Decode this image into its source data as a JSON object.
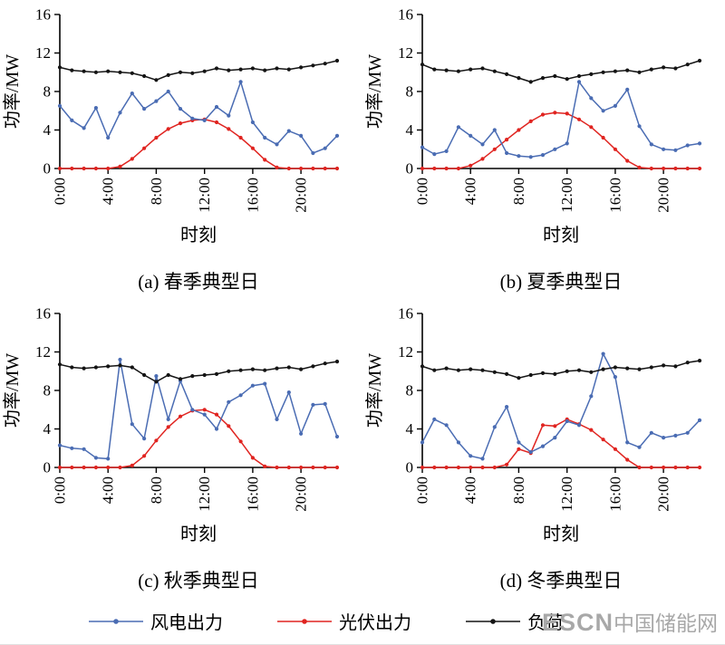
{
  "axes": {
    "ylabel": "功率/MW",
    "xlabel": "时刻",
    "ylim": [
      0,
      16
    ],
    "yticks": [
      0,
      4,
      8,
      12,
      16
    ],
    "xtick_hours": [
      0,
      4,
      8,
      12,
      16,
      20
    ],
    "xtick_labels": [
      "0:00",
      "4:00",
      "8:00",
      "12:00",
      "16:00",
      "20:00"
    ],
    "grid": false
  },
  "legend": {
    "position": "bottom",
    "items": [
      {
        "name": "风电出力",
        "color": "#4a6cb3"
      },
      {
        "name": "光伏出力",
        "color": "#e02420"
      },
      {
        "name": "负荷",
        "color": "#141414"
      }
    ]
  },
  "watermark": {
    "logo": "ESCN",
    "text": "中国储能网",
    "color": "#a8a8a8"
  },
  "chart_data": [
    {
      "type": "line",
      "title": "(a) 春季典型日",
      "xlabel": "时刻",
      "ylabel": "功率/MW",
      "ylim": [
        0,
        16
      ],
      "x": [
        0,
        1,
        2,
        3,
        4,
        5,
        6,
        7,
        8,
        9,
        10,
        11,
        12,
        13,
        14,
        15,
        16,
        17,
        18,
        19,
        20,
        21,
        22,
        23
      ],
      "series": [
        {
          "name": "风电出力",
          "color": "#4a6cb3",
          "values": [
            6.5,
            5.0,
            4.2,
            6.3,
            3.2,
            5.8,
            7.8,
            6.2,
            7.0,
            8.0,
            6.2,
            5.2,
            5.0,
            6.4,
            5.5,
            9.0,
            4.8,
            3.2,
            2.5,
            3.9,
            3.4,
            1.6,
            2.1,
            3.4
          ]
        },
        {
          "name": "光伏出力",
          "color": "#e02420",
          "values": [
            0,
            0,
            0,
            0,
            0,
            0.2,
            1.0,
            2.1,
            3.2,
            4.1,
            4.7,
            5.0,
            5.1,
            4.8,
            4.1,
            3.2,
            2.1,
            0.9,
            0.1,
            0,
            0,
            0,
            0,
            0
          ]
        },
        {
          "name": "负荷",
          "color": "#141414",
          "values": [
            10.5,
            10.2,
            10.1,
            10.0,
            10.1,
            10.0,
            9.9,
            9.6,
            9.2,
            9.7,
            10.0,
            9.9,
            10.1,
            10.4,
            10.2,
            10.3,
            10.4,
            10.2,
            10.4,
            10.3,
            10.5,
            10.7,
            10.9,
            11.2
          ]
        }
      ]
    },
    {
      "type": "line",
      "title": "(b) 夏季典型日",
      "xlabel": "时刻",
      "ylabel": "功率/MW",
      "ylim": [
        0,
        16
      ],
      "x": [
        0,
        1,
        2,
        3,
        4,
        5,
        6,
        7,
        8,
        9,
        10,
        11,
        12,
        13,
        14,
        15,
        16,
        17,
        18,
        19,
        20,
        21,
        22,
        23
      ],
      "series": [
        {
          "name": "风电出力",
          "color": "#4a6cb3",
          "values": [
            2.2,
            1.5,
            1.8,
            4.3,
            3.4,
            2.5,
            4.0,
            1.6,
            1.3,
            1.2,
            1.4,
            2.0,
            2.6,
            9.0,
            7.3,
            6.0,
            6.5,
            8.2,
            4.4,
            2.5,
            2.0,
            1.9,
            2.4,
            2.6
          ]
        },
        {
          "name": "光伏出力",
          "color": "#e02420",
          "values": [
            0,
            0,
            0,
            0,
            0.3,
            1.0,
            2.0,
            3.0,
            4.0,
            4.9,
            5.6,
            5.8,
            5.7,
            5.1,
            4.3,
            3.2,
            2.0,
            0.8,
            0.1,
            0,
            0,
            0,
            0,
            0
          ]
        },
        {
          "name": "负荷",
          "color": "#141414",
          "values": [
            10.8,
            10.3,
            10.2,
            10.1,
            10.3,
            10.4,
            10.1,
            9.8,
            9.4,
            9.0,
            9.4,
            9.6,
            9.3,
            9.6,
            9.8,
            10.0,
            10.1,
            10.2,
            10.0,
            10.3,
            10.5,
            10.4,
            10.8,
            11.2
          ]
        }
      ]
    },
    {
      "type": "line",
      "title": "(c) 秋季典型日",
      "xlabel": "时刻",
      "ylabel": "功率/MW",
      "ylim": [
        0,
        16
      ],
      "x": [
        0,
        1,
        2,
        3,
        4,
        5,
        6,
        7,
        8,
        9,
        10,
        11,
        12,
        13,
        14,
        15,
        16,
        17,
        18,
        19,
        20,
        21,
        22,
        23
      ],
      "series": [
        {
          "name": "风电出力",
          "color": "#4a6cb3",
          "values": [
            2.3,
            2.0,
            1.9,
            1.0,
            0.9,
            11.2,
            4.5,
            3.0,
            9.5,
            5.0,
            9.0,
            6.0,
            5.5,
            4.0,
            6.8,
            7.5,
            8.5,
            8.7,
            5.0,
            7.8,
            3.5,
            6.5,
            6.6,
            3.2
          ]
        },
        {
          "name": "光伏出力",
          "color": "#e02420",
          "values": [
            0,
            0,
            0,
            0,
            0,
            0,
            0.2,
            1.2,
            2.8,
            4.2,
            5.3,
            5.9,
            6.0,
            5.5,
            4.3,
            2.7,
            1.0,
            0.1,
            0,
            0,
            0,
            0,
            0,
            0
          ]
        },
        {
          "name": "负荷",
          "color": "#141414",
          "values": [
            10.7,
            10.4,
            10.3,
            10.4,
            10.5,
            10.6,
            10.4,
            9.6,
            8.9,
            9.6,
            9.2,
            9.5,
            9.6,
            9.7,
            10.0,
            10.1,
            10.2,
            10.1,
            10.3,
            10.4,
            10.2,
            10.5,
            10.8,
            11.0
          ]
        }
      ]
    },
    {
      "type": "line",
      "title": "(d) 冬季典型日",
      "xlabel": "时刻",
      "ylabel": "功率/MW",
      "ylim": [
        0,
        16
      ],
      "x": [
        0,
        1,
        2,
        3,
        4,
        5,
        6,
        7,
        8,
        9,
        10,
        11,
        12,
        13,
        14,
        15,
        16,
        17,
        18,
        19,
        20,
        21,
        22,
        23
      ],
      "series": [
        {
          "name": "风电出力",
          "color": "#4a6cb3",
          "values": [
            2.6,
            5.0,
            4.4,
            2.6,
            1.2,
            0.9,
            4.2,
            6.3,
            2.6,
            1.6,
            2.2,
            3.1,
            4.8,
            4.4,
            7.4,
            11.8,
            9.4,
            2.6,
            2.1,
            3.6,
            3.1,
            3.3,
            3.6,
            4.9
          ]
        },
        {
          "name": "光伏出力",
          "color": "#e02420",
          "values": [
            0,
            0,
            0,
            0,
            0,
            0,
            0,
            0.3,
            1.9,
            1.5,
            4.4,
            4.3,
            5.0,
            4.5,
            3.9,
            2.9,
            1.9,
            0.8,
            0,
            0,
            0,
            0,
            0,
            0
          ]
        },
        {
          "name": "负荷",
          "color": "#141414",
          "values": [
            10.5,
            10.1,
            10.3,
            10.1,
            10.2,
            10.1,
            9.9,
            9.7,
            9.3,
            9.6,
            9.8,
            9.7,
            10.0,
            10.1,
            9.9,
            10.2,
            10.4,
            10.3,
            10.2,
            10.4,
            10.6,
            10.5,
            10.9,
            11.1
          ]
        }
      ]
    }
  ]
}
